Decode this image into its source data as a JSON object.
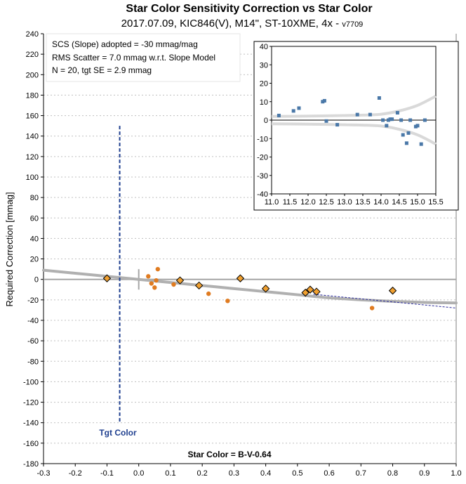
{
  "chart_data": [
    {
      "type": "scatter",
      "title": "Star Color Sensitivity Correction vs Star Color",
      "subtitle": "2017.07.09, KIC846(V), M14\", ST-10XME, 4x",
      "version": "v7709",
      "xlabel": "Star Color = B-V-0.64",
      "ylabel": "Required Correction [mmag]",
      "xlim": [
        -0.3,
        1.0
      ],
      "ylim": [
        -180,
        240
      ],
      "xticks": [
        "-0.3",
        "-0.2",
        "-0.1",
        "0.0",
        "0.1",
        "0.2",
        "0.3",
        "0.4",
        "0.5",
        "0.6",
        "0.7",
        "0.8",
        "0.9",
        "1.0"
      ],
      "yticks": [
        "-180",
        "-160",
        "-140",
        "-120",
        "-100",
        "-80",
        "-60",
        "-40",
        "-20",
        "0",
        "20",
        "40",
        "60",
        "80",
        "100",
        "120",
        "140",
        "160",
        "180",
        "200",
        "220",
        "240"
      ],
      "grid": "horizontal dashed",
      "colors": {
        "circles": "#e07b20",
        "diamonds": "#f0a030",
        "model": "#b0b0b0",
        "target": "#1f3f8f",
        "dashed_fit": "#2a2a9a"
      },
      "info_box": [
        "SCS (Slope) adopted  =  -30 mmag/mag",
        "RMS Scatter = 7.0 mmag w.r.t. Slope Model",
        "N = 20,  tgt SE = 2.9 mmag"
      ],
      "target": {
        "label": "Tgt Color",
        "x": -0.06,
        "y_range": [
          -140,
          150
        ]
      },
      "circle_points": {
        "x": [
          0.03,
          0.04,
          0.05,
          0.055,
          0.06,
          0.11,
          0.22,
          0.28,
          0.735
        ],
        "y": [
          3,
          -4,
          -8,
          -1,
          10,
          -5,
          -14,
          -21,
          -28
        ]
      },
      "diamond_points": {
        "x": [
          -0.1,
          0.13,
          0.19,
          0.32,
          0.4,
          0.525,
          0.54,
          0.56,
          0.8
        ],
        "y": [
          1,
          -1,
          -6,
          1,
          -9,
          -13,
          -10,
          -12,
          -11
        ]
      },
      "model_curve": {
        "x": [
          -0.3,
          -0.2,
          -0.1,
          0.0,
          0.1,
          0.2,
          0.3,
          0.4,
          0.5,
          0.6,
          0.7,
          0.8,
          0.9,
          1.0
        ],
        "y": [
          9,
          6,
          3,
          0,
          -3,
          -6,
          -9,
          -12,
          -15,
          -18,
          -20,
          -21.5,
          -22.5,
          -23
        ]
      },
      "linear_fit": {
        "x": [
          0.55,
          1.0
        ],
        "y": [
          -14.5,
          -28
        ]
      }
    },
    {
      "type": "scatter",
      "xlim": [
        11.0,
        15.5
      ],
      "ylim": [
        -40,
        40
      ],
      "xticks": [
        "11.0",
        "11.5",
        "12.0",
        "12.5",
        "13.0",
        "13.5",
        "14.0",
        "14.5",
        "15.0",
        "15.5"
      ],
      "yticks": [
        "-40",
        "-30",
        "-20",
        "-10",
        "0",
        "10",
        "20",
        "30",
        "40"
      ],
      "colors": {
        "points": "#4a78a8",
        "envelope": "#d9d9d9"
      },
      "points": {
        "x": [
          11.2,
          11.6,
          11.75,
          12.4,
          12.45,
          12.5,
          12.8,
          13.35,
          13.7,
          13.95,
          14.05,
          14.15,
          14.2,
          14.25,
          14.3,
          14.45,
          14.55,
          14.6,
          14.7,
          14.75,
          14.8,
          14.95,
          15.0,
          15.1,
          15.2
        ],
        "y": [
          2.5,
          5,
          6.5,
          10,
          10.5,
          -0.5,
          -2.5,
          3,
          3,
          12,
          0,
          -3,
          0,
          0.5,
          0.5,
          4,
          0,
          -8,
          -12.5,
          -7,
          0,
          -3.5,
          -3,
          -13,
          0
        ]
      },
      "upper_envelope": {
        "x": [
          11.0,
          12.0,
          13.0,
          13.5,
          14.0,
          14.5,
          15.0,
          15.5
        ],
        "y": [
          2,
          2.2,
          2.5,
          2.7,
          3.2,
          5,
          8,
          13
        ]
      },
      "lower_envelope": {
        "x": [
          11.0,
          12.0,
          13.0,
          13.5,
          14.0,
          14.5,
          15.0,
          15.5
        ],
        "y": [
          -2,
          -2.2,
          -2.5,
          -2.7,
          -3.2,
          -5,
          -8,
          -13
        ]
      }
    }
  ]
}
